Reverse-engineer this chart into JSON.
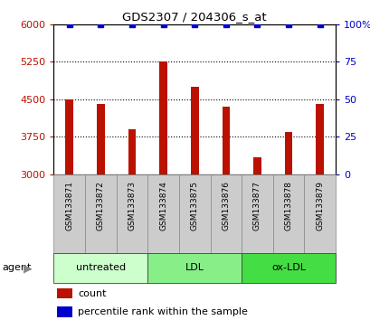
{
  "title": "GDS2307 / 204306_s_at",
  "samples": [
    "GSM133871",
    "GSM133872",
    "GSM133873",
    "GSM133874",
    "GSM133875",
    "GSM133876",
    "GSM133877",
    "GSM133878",
    "GSM133879"
  ],
  "count_values": [
    4500,
    4400,
    3900,
    5250,
    4750,
    4350,
    3350,
    3850,
    4400
  ],
  "percentile_values": [
    100,
    100,
    100,
    100,
    100,
    100,
    100,
    100,
    100
  ],
  "ylim_left": [
    3000,
    6000
  ],
  "ylim_right": [
    0,
    100
  ],
  "yticks_left": [
    3000,
    3750,
    4500,
    5250,
    6000
  ],
  "yticks_right": [
    0,
    25,
    50,
    75,
    100
  ],
  "bar_color": "#bb1100",
  "dot_color": "#0000cc",
  "groups": [
    {
      "label": "untreated",
      "indices": [
        0,
        1,
        2
      ],
      "color": "#ccffcc"
    },
    {
      "label": "LDL",
      "indices": [
        3,
        4,
        5
      ],
      "color": "#88ee88"
    },
    {
      "label": "ox-LDL",
      "indices": [
        6,
        7,
        8
      ],
      "color": "#44dd44"
    }
  ],
  "agent_label": "agent",
  "legend_count_label": "count",
  "legend_percentile_label": "percentile rank within the sample",
  "bar_width": 0.25,
  "label_box_color": "#cccccc",
  "label_box_edgecolor": "#888888"
}
